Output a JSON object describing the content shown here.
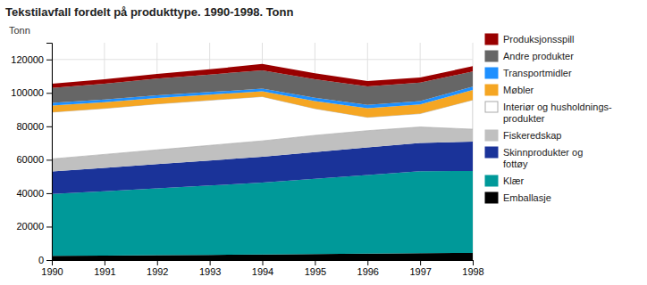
{
  "chart_data": {
    "type": "area",
    "stacked": true,
    "title": "Tekstilavfall fordelt på produkttype. 1990-1998. Tonn",
    "ylabel": "Tonn",
    "x": [
      1990,
      1991,
      1992,
      1993,
      1994,
      1995,
      1996,
      1997,
      1998
    ],
    "xlim": [
      1990,
      1998
    ],
    "xticks": [
      1990,
      1991,
      1992,
      1993,
      1994,
      1995,
      1996,
      1997,
      1998
    ],
    "ylim": [
      0,
      130000
    ],
    "yticks": [
      0,
      20000,
      40000,
      60000,
      80000,
      100000,
      120000
    ],
    "grid": true,
    "legend": "right",
    "series": [
      {
        "name": "Emballasje",
        "color": "#000000",
        "values": [
          2500,
          2700,
          2900,
          3100,
          3300,
          3600,
          3900,
          4100,
          4300
        ]
      },
      {
        "name": "Klær",
        "color": "#009999",
        "values": [
          37000,
          38500,
          40000,
          41500,
          43000,
          45000,
          47000,
          49000,
          49000
        ]
      },
      {
        "name": "Skinnprodukter og\nfottøy",
        "color": "#1a3399",
        "values": [
          13500,
          14000,
          14500,
          15000,
          15500,
          16000,
          16500,
          17000,
          17500
        ]
      },
      {
        "name": "Fiskeredskap",
        "color": "#c0c0c0",
        "values": [
          7500,
          8000,
          8500,
          9000,
          9500,
          10000,
          10000,
          9500,
          7500
        ]
      },
      {
        "name": "Interiør og husholdnings-\nprodukter",
        "color": "#ffffff",
        "values": [
          28000,
          27500,
          27500,
          27000,
          26500,
          16000,
          8000,
          8000,
          17500
        ]
      },
      {
        "name": "Møbler",
        "color": "#f5a623",
        "values": [
          4000,
          3800,
          3600,
          3400,
          3200,
          4500,
          5500,
          5500,
          6000
        ]
      },
      {
        "name": "Transportmidler",
        "color": "#1e90ff",
        "values": [
          1500,
          1500,
          1500,
          1500,
          1500,
          2000,
          2000,
          2000,
          2000
        ]
      },
      {
        "name": "Andre produkter",
        "color": "#666666",
        "values": [
          9000,
          9500,
          10000,
          10500,
          11000,
          11000,
          11000,
          11000,
          9000
        ]
      },
      {
        "name": "Produksjonsspill",
        "color": "#990000",
        "values": [
          2500,
          2700,
          2900,
          3100,
          3800,
          3600,
          3200,
          3100,
          3200
        ]
      }
    ]
  }
}
